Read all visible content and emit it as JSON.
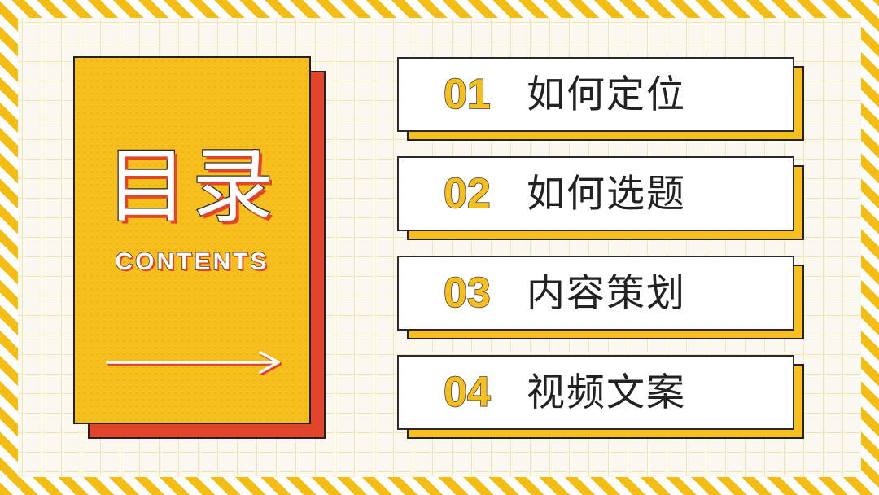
{
  "colors": {
    "accent_yellow": "#f6bf1e",
    "accent_red": "#e2452c",
    "outline": "#222222",
    "background": "#fbf9ef"
  },
  "title_card": {
    "title": "目录",
    "subtitle": "CONTENTS",
    "icon": "arrow-right-icon"
  },
  "menu": {
    "items": [
      {
        "number": "01",
        "label": "如何定位"
      },
      {
        "number": "02",
        "label": "如何选题"
      },
      {
        "number": "03",
        "label": "内容策划"
      },
      {
        "number": "04",
        "label": "视频文案"
      }
    ]
  }
}
